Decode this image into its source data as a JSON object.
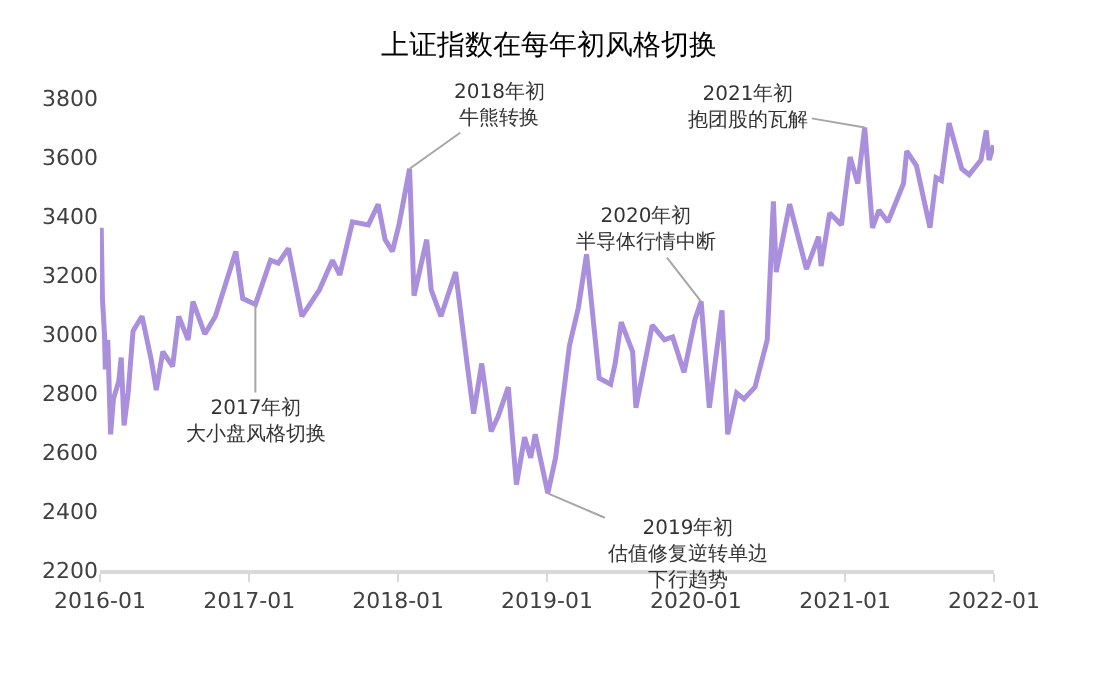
{
  "chart_data": {
    "type": "line",
    "title": "上证指数在每年初风格切换",
    "x": [
      "2016-01-04",
      "2016-01-07",
      "2016-01-12",
      "2016-01-14",
      "2016-01-20",
      "2016-01-27",
      "2016-02-03",
      "2016-02-16",
      "2016-02-22",
      "2016-02-29",
      "2016-03-10",
      "2016-03-22",
      "2016-04-13",
      "2016-05-06",
      "2016-05-18",
      "2016-06-03",
      "2016-06-27",
      "2016-07-12",
      "2016-08-04",
      "2016-08-16",
      "2016-09-14",
      "2016-10-10",
      "2016-11-29",
      "2016-12-16",
      "2017-01-16",
      "2017-02-22",
      "2017-03-13",
      "2017-04-07",
      "2017-05-10",
      "2017-06-22",
      "2017-07-24",
      "2017-08-11",
      "2017-09-11",
      "2017-10-20",
      "2017-11-13",
      "2017-11-30",
      "2017-12-18",
      "2018-01-03",
      "2018-01-29",
      "2018-02-09",
      "2018-03-12",
      "2018-03-23",
      "2018-04-16",
      "2018-05-22",
      "2018-06-19",
      "2018-07-05",
      "2018-07-25",
      "2018-08-17",
      "2018-09-03",
      "2018-09-28",
      "2018-10-18",
      "2018-11-07",
      "2018-11-22",
      "2018-12-03",
      "2019-01-03",
      "2019-01-22",
      "2019-02-25",
      "2019-03-19",
      "2019-04-08",
      "2019-05-09",
      "2019-06-06",
      "2019-06-17",
      "2019-07-02",
      "2019-07-30",
      "2019-08-07",
      "2019-09-16",
      "2019-10-16",
      "2019-11-05",
      "2019-12-03",
      "2019-12-30",
      "2020-01-14",
      "2020-02-03",
      "2020-03-05",
      "2020-03-19",
      "2020-04-10",
      "2020-04-28",
      "2020-05-25",
      "2020-06-24",
      "2020-07-09",
      "2020-07-16",
      "2020-08-18",
      "2020-09-28",
      "2020-10-28",
      "2020-11-03",
      "2020-11-24",
      "2020-12-23",
      "2021-01-13",
      "2021-02-01",
      "2021-02-18",
      "2021-03-09",
      "2021-03-25",
      "2021-04-16",
      "2021-05-24",
      "2021-06-01",
      "2021-06-25",
      "2021-07-28",
      "2021-08-12",
      "2021-08-25",
      "2021-09-13",
      "2021-10-14",
      "2021-11-01",
      "2021-11-30",
      "2021-12-13",
      "2021-12-20",
      "2021-12-31"
    ],
    "series": [
      {
        "color": "#a98fdc",
        "values": [
          3360,
          3120,
          3000,
          2880,
          2980,
          2660,
          2780,
          2840,
          2920,
          2690,
          2800,
          3010,
          3060,
          2910,
          2810,
          2940,
          2890,
          3060,
          2980,
          3110,
          3000,
          3060,
          3280,
          3120,
          3100,
          3250,
          3240,
          3290,
          3060,
          3150,
          3250,
          3200,
          3380,
          3370,
          3440,
          3320,
          3280,
          3370,
          3560,
          3130,
          3320,
          3150,
          3060,
          3210,
          2900,
          2730,
          2900,
          2670,
          2720,
          2820,
          2490,
          2650,
          2580,
          2660,
          2460,
          2580,
          2960,
          3090,
          3270,
          2850,
          2830,
          2900,
          3040,
          2940,
          2750,
          3030,
          2980,
          2990,
          2870,
          3050,
          3110,
          2750,
          3080,
          2660,
          2800,
          2780,
          2820,
          2980,
          3450,
          3210,
          3440,
          3220,
          3330,
          3230,
          3410,
          3370,
          3600,
          3510,
          3700,
          3360,
          3420,
          3380,
          3510,
          3620,
          3570,
          3360,
          3530,
          3520,
          3715,
          3560,
          3540,
          3590,
          3690,
          3590,
          3640
        ]
      }
    ],
    "xlim": [
      "2016-01",
      "2022-01"
    ],
    "xticks": [
      "2016-01",
      "2017-01",
      "2018-01",
      "2019-01",
      "2020-01",
      "2021-01",
      "2022-01"
    ],
    "ylim": [
      2200,
      3800
    ],
    "yticks": [
      2200,
      2400,
      2600,
      2800,
      3000,
      3200,
      3400,
      3600,
      3800
    ],
    "marker": "none",
    "line_style": "solid",
    "annotations": [
      {
        "text": "2017年初大小盘风格切换",
        "x": "2017-01-16",
        "y": 3100
      },
      {
        "text": "2018年初牛熊转换",
        "x": "2018-01-29",
        "y": 3560
      },
      {
        "text": "2019年初估值修复逆转单边下行趋势",
        "x": "2019-01-03",
        "y": 2460
      },
      {
        "text": "2020年初半导体行情中断",
        "x": "2020-01-14",
        "y": 3110
      },
      {
        "text": "2021年初抱团股的瓦解",
        "x": "2021-02-18",
        "y": 3700
      }
    ]
  }
}
